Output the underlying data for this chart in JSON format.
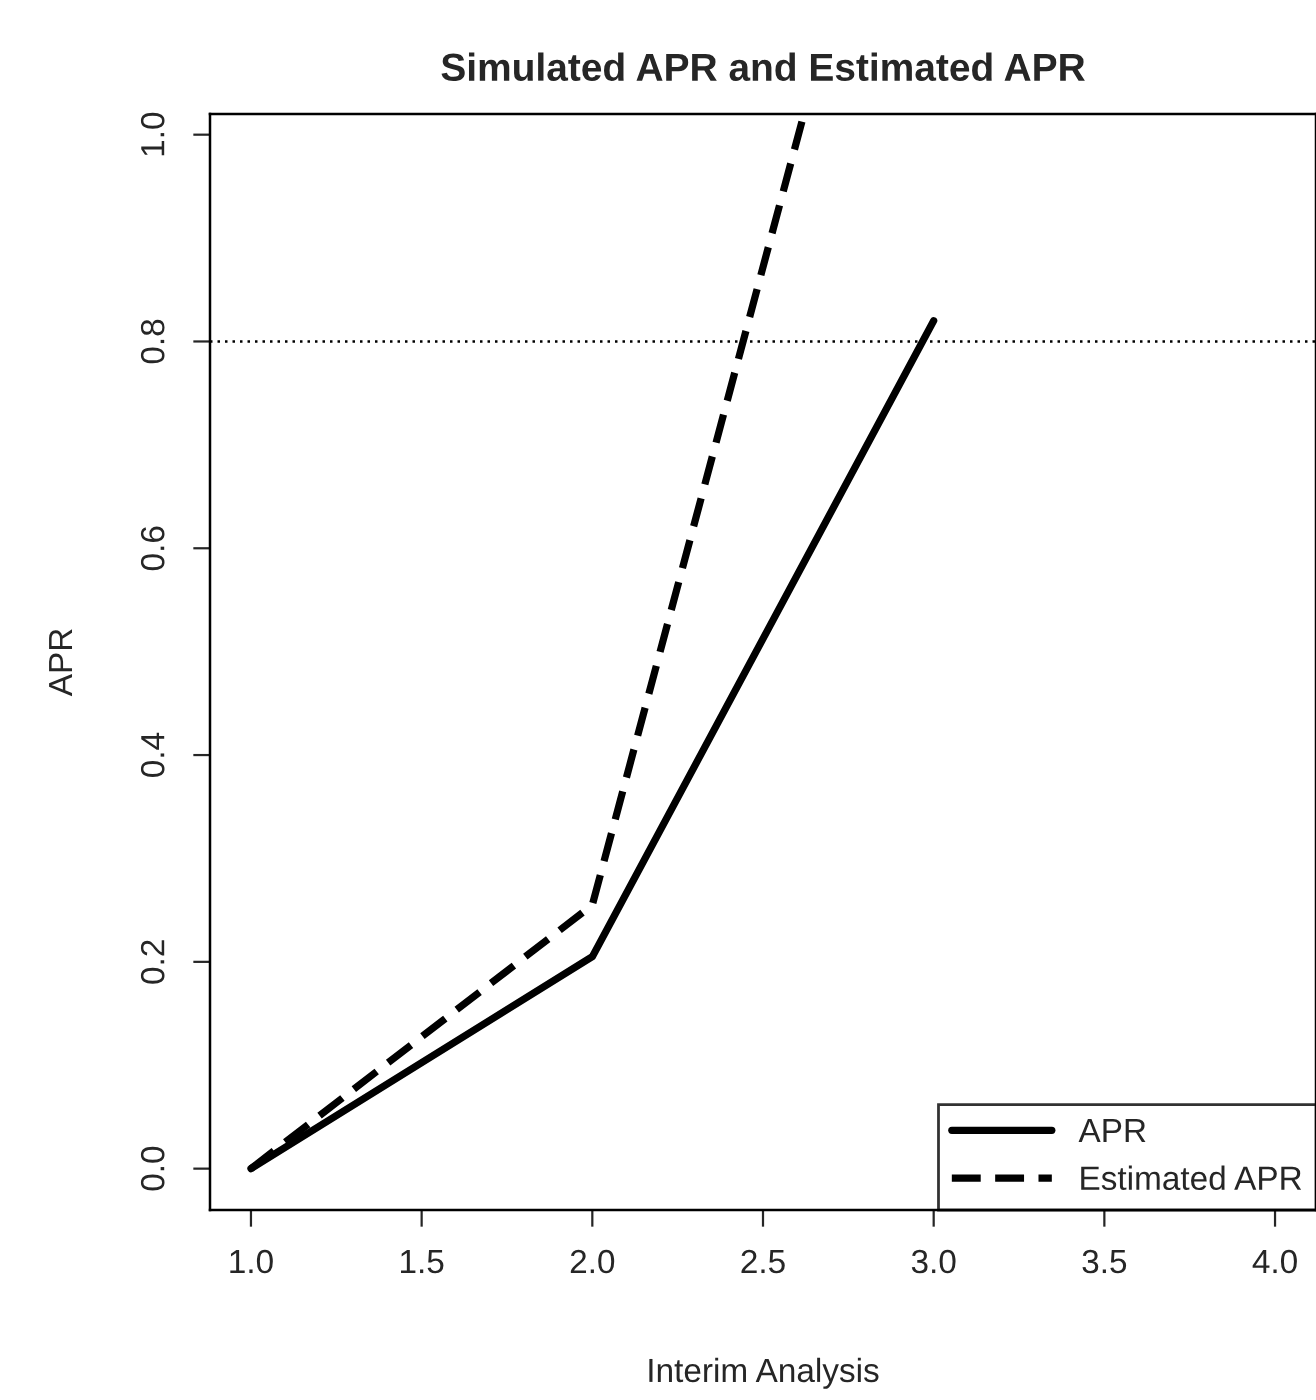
{
  "chart_data": {
    "type": "line",
    "title": "Simulated APR and Estimated APR",
    "xlabel": "Interim Analysis",
    "ylabel": "APR",
    "xlim": [
      0.88,
      4.12
    ],
    "ylim": [
      -0.04,
      1.02
    ],
    "xticks": [
      {
        "value": 1,
        "label": "1.0"
      },
      {
        "value": 1.5,
        "label": "1.5"
      },
      {
        "value": 2,
        "label": "2.0"
      },
      {
        "value": 2.5,
        "label": "2.5"
      },
      {
        "value": 3,
        "label": "3.0"
      },
      {
        "value": 3.5,
        "label": "3.5"
      },
      {
        "value": 4,
        "label": "4.0"
      }
    ],
    "yticks": [
      {
        "value": 0,
        "label": "0.0"
      },
      {
        "value": 0.2,
        "label": "0.2"
      },
      {
        "value": 0.4,
        "label": "0.4"
      },
      {
        "value": 0.6,
        "label": "0.6"
      },
      {
        "value": 0.8,
        "label": "0.8"
      },
      {
        "value": 1,
        "label": "1.0"
      }
    ],
    "series": [
      {
        "name": "APR",
        "color": "#000000",
        "line_style": "solid",
        "x": [
          1,
          2,
          3
        ],
        "values": [
          0,
          0.205,
          0.82
        ]
      },
      {
        "name": "Estimated APR",
        "color": "#000000",
        "line_style": "dashed",
        "x": [
          1,
          2,
          2.62
        ],
        "values": [
          0,
          0.255,
          1.02
        ]
      }
    ],
    "ref_lines": [
      {
        "axis": "y",
        "value": 0.8,
        "color": "#000000",
        "line_style": "dotted"
      }
    ],
    "legend": "bottom right",
    "grid": false,
    "marker": "none"
  }
}
